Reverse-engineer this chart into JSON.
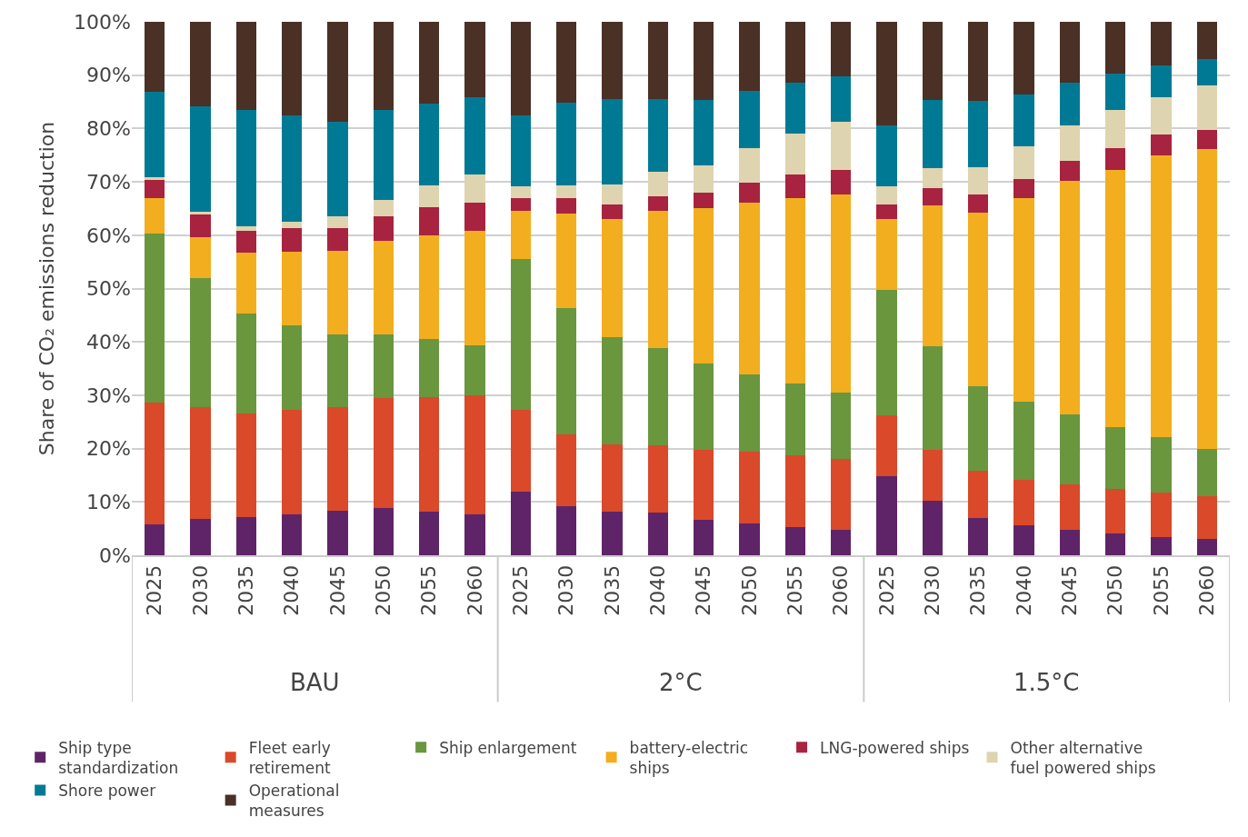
{
  "chart_data": {
    "type": "bar",
    "stacked": true,
    "ylabel": "Share of CO₂ emissions reduction",
    "categories": [
      "2025",
      "2030",
      "2035",
      "2040",
      "2045",
      "2050",
      "2055",
      "2060",
      "2025",
      "2030",
      "2035",
      "2040",
      "2045",
      "2050",
      "2055",
      "2060",
      "2025",
      "2030",
      "2035",
      "2040",
      "2045",
      "2050",
      "2055",
      "2060"
    ],
    "annotations": [
      "BAU",
      "2°C",
      "1.5°C"
    ],
    "ylim": [
      0,
      100
    ],
    "yticks": [
      {
        "value": 0,
        "label": "0%"
      },
      {
        "value": 10,
        "label": "10%"
      },
      {
        "value": 20,
        "label": "20%"
      },
      {
        "value": 30,
        "label": "30%"
      },
      {
        "value": 40,
        "label": "40%"
      },
      {
        "value": 50,
        "label": "50%"
      },
      {
        "value": 60,
        "label": "60%"
      },
      {
        "value": 70,
        "label": "70%"
      },
      {
        "value": 80,
        "label": "80%"
      },
      {
        "value": 90,
        "label": "90%"
      },
      {
        "value": 100,
        "label": "100%"
      }
    ],
    "grid": "y",
    "legend": "bottom",
    "series": [
      {
        "name": "Ship type standardization",
        "color": "#5f2467",
        "values": [
          5.8,
          6.9,
          7.2,
          7.7,
          8.3,
          8.9,
          8.1,
          7.7,
          11.9,
          9.2,
          8.1,
          8.0,
          6.7,
          5.9,
          5.3,
          4.8,
          14.8,
          10.2,
          7.0,
          5.6,
          4.8,
          4.1,
          3.4,
          3.0
        ]
      },
      {
        "name": "Fleet early retirement",
        "color": "#d9492a",
        "values": [
          22.8,
          20.9,
          19.4,
          19.5,
          19.5,
          20.5,
          21.6,
          22.3,
          15.3,
          13.5,
          12.7,
          12.6,
          13.0,
          13.5,
          13.5,
          13.3,
          11.5,
          9.5,
          8.8,
          8.6,
          8.5,
          8.4,
          8.3,
          8.1
        ]
      },
      {
        "name": "Ship enlargement",
        "color": "#6a963e",
        "values": [
          31.7,
          24.1,
          18.7,
          15.9,
          13.6,
          12.0,
          10.8,
          9.4,
          28.4,
          23.6,
          20.1,
          18.2,
          16.2,
          14.5,
          13.4,
          12.4,
          23.5,
          19.4,
          15.9,
          14.6,
          13.1,
          11.6,
          10.5,
          8.9
        ]
      },
      {
        "name": "battery-electric ships",
        "color": "#f2ae1f",
        "values": [
          6.7,
          7.8,
          11.4,
          13.8,
          15.6,
          17.5,
          19.5,
          21.4,
          8.9,
          17.8,
          22.2,
          25.7,
          29.1,
          32.2,
          34.8,
          37.2,
          13.3,
          26.5,
          32.5,
          38.2,
          43.8,
          48.2,
          52.8,
          56.1
        ]
      },
      {
        "name": "LNG-powered ships",
        "color": "#a8233f",
        "values": [
          3.5,
          4.1,
          4.1,
          4.4,
          4.4,
          4.7,
          5.2,
          5.3,
          2.5,
          2.8,
          2.7,
          2.8,
          3.0,
          3.7,
          4.3,
          4.6,
          2.7,
          3.2,
          3.5,
          3.6,
          3.7,
          4.0,
          3.8,
          3.7
        ]
      },
      {
        "name": "Other alternative fuel powered ships",
        "color": "#dfd4b0",
        "values": [
          0.3,
          0.6,
          0.8,
          1.2,
          2.2,
          3.0,
          4.2,
          5.3,
          2.2,
          2.5,
          3.7,
          4.6,
          5.0,
          6.5,
          7.8,
          9.0,
          3.3,
          3.7,
          5.0,
          6.0,
          6.6,
          7.1,
          7.1,
          8.2
        ]
      },
      {
        "name": "Shore power",
        "color": "#007a94",
        "values": [
          16.1,
          19.7,
          21.8,
          20.0,
          17.7,
          16.8,
          15.3,
          14.5,
          13.3,
          15.4,
          16.1,
          13.6,
          12.3,
          10.7,
          9.5,
          8.4,
          11.4,
          12.8,
          12.5,
          9.8,
          8.1,
          6.9,
          6.0,
          5.0
        ]
      },
      {
        "name": "Operational measures",
        "color": "#4a3025",
        "values": [
          13.1,
          15.9,
          16.6,
          17.5,
          18.7,
          16.6,
          15.3,
          14.1,
          17.5,
          15.2,
          14.4,
          14.5,
          14.7,
          13.0,
          11.4,
          10.3,
          19.5,
          14.7,
          14.8,
          13.6,
          11.4,
          9.7,
          8.1,
          7.0
        ]
      }
    ]
  }
}
